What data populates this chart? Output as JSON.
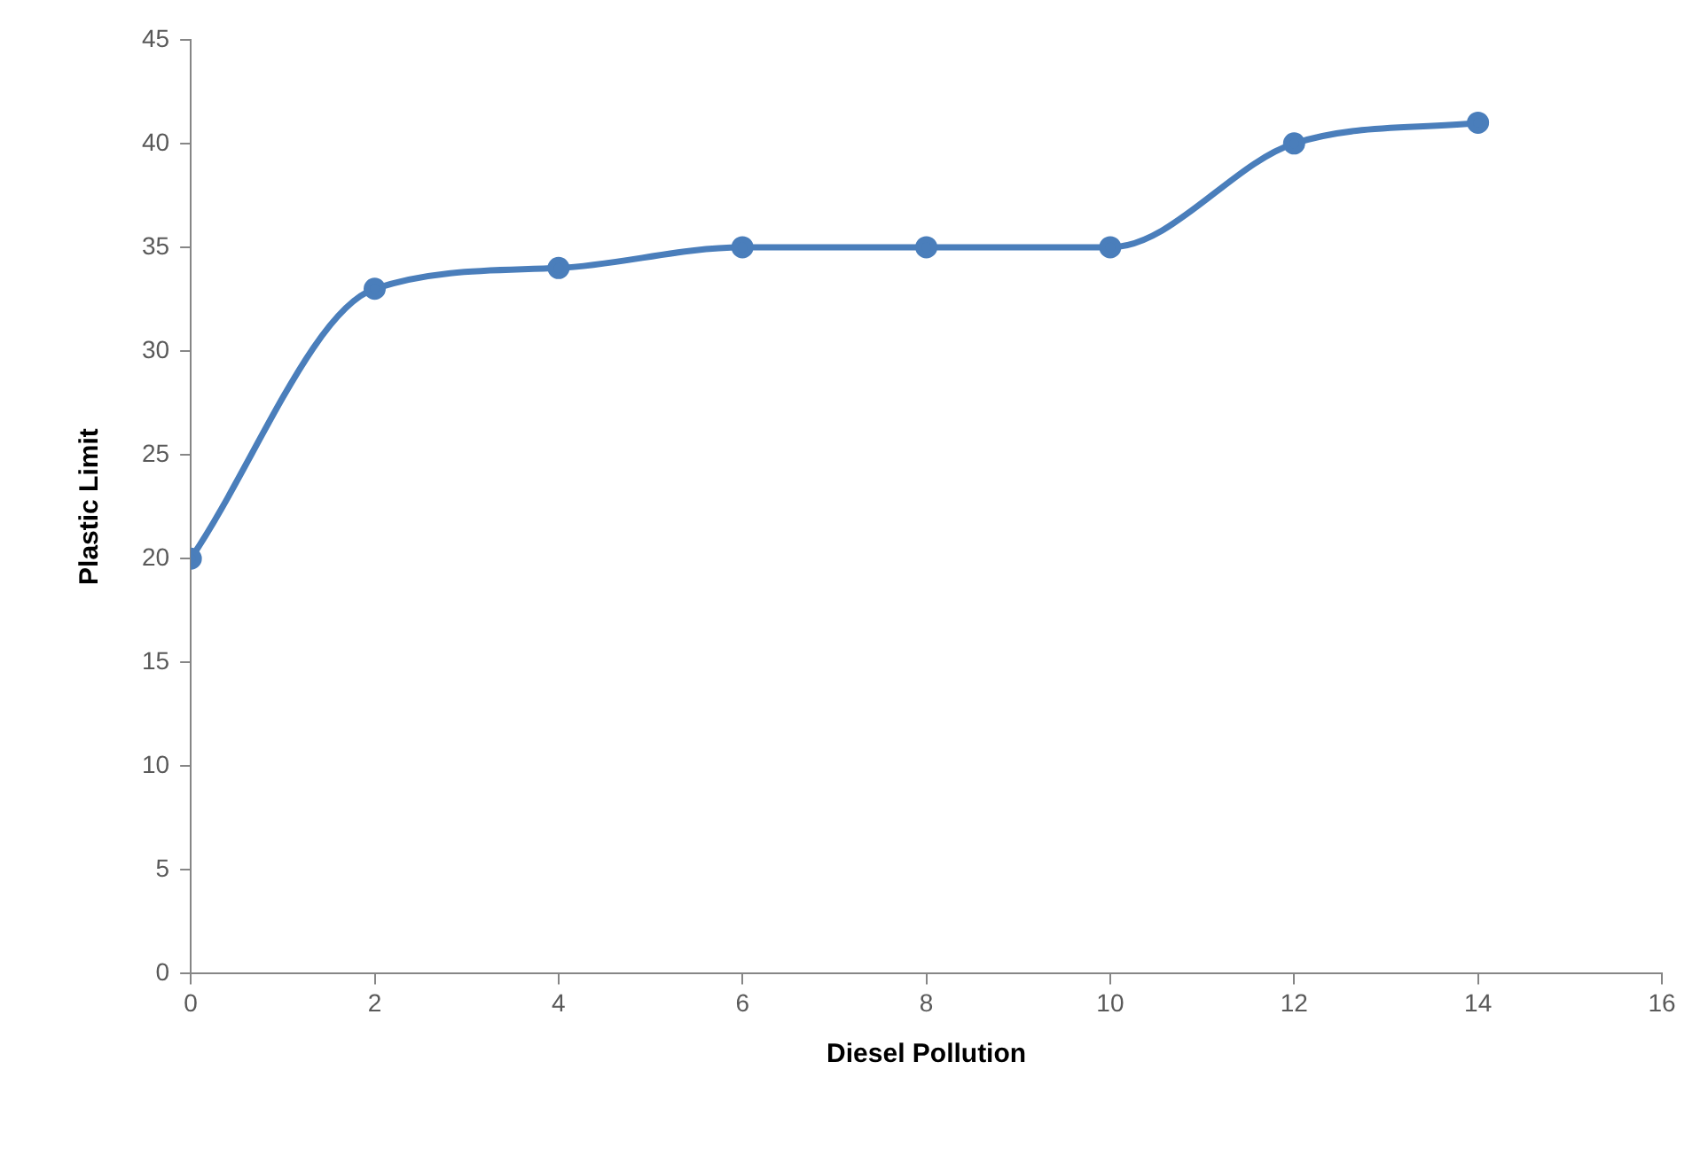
{
  "chart_data": {
    "type": "line",
    "xlabel": "Diesel Pollution",
    "ylabel": "Plastic Limit",
    "x": [
      0,
      2,
      4,
      6,
      8,
      10,
      12,
      14
    ],
    "series": [
      {
        "color": "#4a7ebb",
        "values": [
          20,
          33,
          34,
          35,
          35,
          35,
          40,
          41
        ]
      }
    ],
    "xlim": [
      0,
      16
    ],
    "xticks": [
      0,
      2,
      4,
      6,
      8,
      10,
      12,
      14,
      16
    ],
    "ylim": [
      0,
      45
    ],
    "yticks": [
      0,
      5,
      10,
      15,
      20,
      25,
      30,
      35,
      40,
      45
    ],
    "grid": false,
    "legend": false,
    "marker": "circle",
    "line_style": "solid"
  }
}
